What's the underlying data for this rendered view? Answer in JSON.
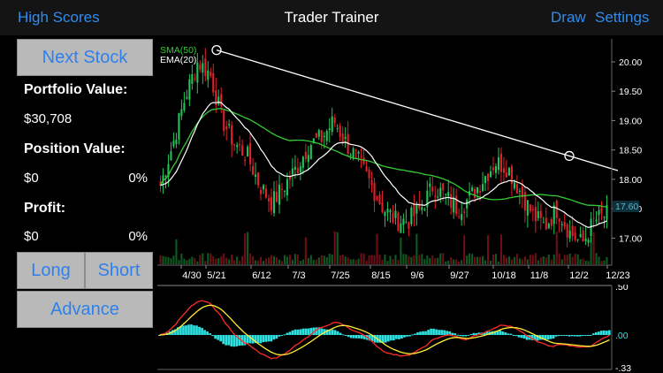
{
  "nav": {
    "left_link": "High Scores",
    "title": "Trader Trainer",
    "draw_link": "Draw",
    "settings_link": "Settings"
  },
  "sidebar": {
    "next_stock": "Next Stock",
    "portfolio_label": "Portfolio Value:",
    "portfolio_value": "$30,708",
    "position_label": "Position Value:",
    "position_value": "$0",
    "position_pct": "0%",
    "profit_label": "Profit:",
    "profit_value": "$0",
    "profit_pct": "0%",
    "long": "Long",
    "short": "Short",
    "advance": "Advance"
  },
  "colors": {
    "accent": "#2f80ed",
    "up": "#21c45a",
    "down": "#e0202a",
    "sma": "#33cc33",
    "ema": "#ffffff",
    "macd_hist": "#2ee0e0",
    "macd_line": "#ff2a2a",
    "signal_line": "#ffee33",
    "price_marker": "#4fb9d6"
  },
  "chart_data": [
    {
      "type": "candlestick",
      "legend": [
        "SMA(50)",
        "EMA(20)"
      ],
      "x_tick_labels": [
        "4/30",
        "5/21",
        "6/12",
        "7/3",
        "7/25",
        "8/15",
        "9/6",
        "9/27",
        "10/18",
        "11/8",
        "12/2",
        "12/23"
      ],
      "y_tick_labels": [
        "20.00",
        "19.50",
        "19.00",
        "18.50",
        "18.00",
        "17.50",
        "17.00"
      ],
      "ylim": [
        16.6,
        20.3
      ],
      "last_price": "17.60",
      "close_approx": [
        17.9,
        18.6,
        19.4,
        20.0,
        19.8,
        19.0,
        18.6,
        18.4,
        17.9,
        17.6,
        17.9,
        18.2,
        18.6,
        18.7,
        19.0,
        18.6,
        18.3,
        17.9,
        17.5,
        17.3,
        17.3,
        17.5,
        17.9,
        17.7,
        17.5,
        17.7,
        18.0,
        18.3,
        18.2,
        17.8,
        17.4,
        17.2,
        17.5,
        17.1,
        16.9,
        17.3,
        17.4
      ],
      "trendline": {
        "from": [
          "5/21",
          20.2
        ],
        "to": [
          "12/23",
          18.15
        ]
      }
    },
    {
      "type": "line",
      "series": [
        "MACD",
        "Signal",
        "Histogram"
      ],
      "y_tick_labels": [
        ".50",
        ".00",
        "-.33"
      ]
    }
  ]
}
